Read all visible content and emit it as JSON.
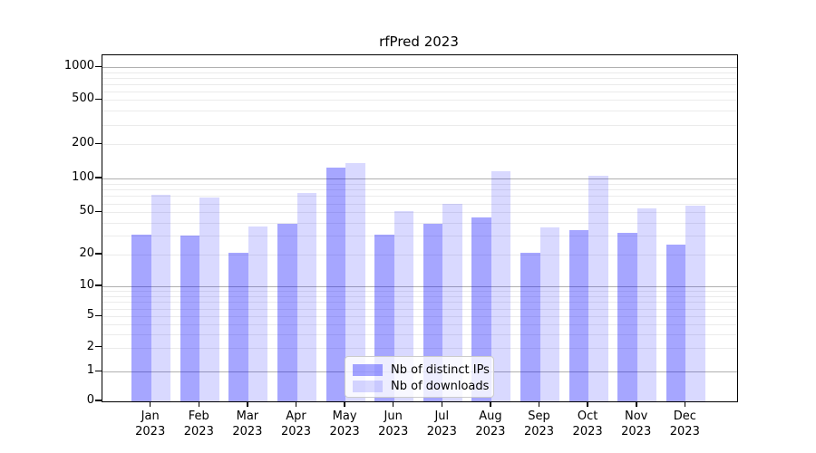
{
  "title": "rfPred 2023",
  "chart_data": {
    "type": "bar",
    "categories": [
      "Jan",
      "Feb",
      "Mar",
      "Apr",
      "May",
      "Jun",
      "Jul",
      "Aug",
      "Sep",
      "Oct",
      "Nov",
      "Dec"
    ],
    "year_label": "2023",
    "series": [
      {
        "name": "Nb of distinct IPs",
        "color": "#0000ff",
        "opacity": 0.35,
        "values": [
          31,
          30,
          21,
          39,
          124,
          31,
          39,
          45,
          21,
          34,
          32,
          25
        ]
      },
      {
        "name": "Nb of downloads",
        "color": "#0000ff",
        "opacity": 0.15,
        "values": [
          71,
          68,
          37,
          75,
          137,
          51,
          60,
          115,
          36,
          106,
          54,
          57
        ]
      }
    ],
    "yticks": [
      0,
      1,
      2,
      5,
      10,
      20,
      50,
      100,
      200,
      500,
      1000
    ],
    "yscale": "symlog",
    "ylim": [
      0,
      1300
    ],
    "grid": true,
    "gridline_major_color": "#b0b0b0",
    "gridline_minor_color": "#ebebeb",
    "legend_position": "lower center"
  }
}
